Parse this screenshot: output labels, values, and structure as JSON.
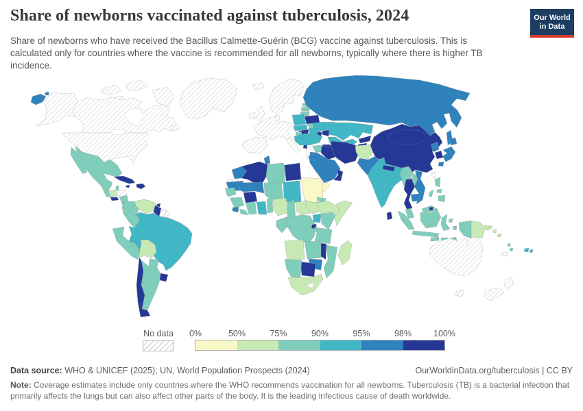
{
  "header": {
    "title": "Share of newborns vaccinated against tuberculosis, 2024",
    "subtitle": "Share of newborns who have received the Bacillus Calmette-Guérin (BCG) vaccine against tuberculosis. This is calculated only for countries where the vaccine is recommended for all newborns, typically where there is higher TB incidence.",
    "logo_line1": "Our World",
    "logo_line2": "in Data",
    "logo_bg": "#1d3d63",
    "logo_stripe": "#d73a2d"
  },
  "legend": {
    "no_data_label": "No data",
    "ticks": [
      "0%",
      "50%",
      "75%",
      "90%",
      "95%",
      "98%",
      "100%"
    ],
    "bins": [
      {
        "range": "0-50%",
        "color": "#f9f8c7"
      },
      {
        "range": "50-75%",
        "color": "#c7e9b4"
      },
      {
        "range": "75-90%",
        "color": "#7fcdbb"
      },
      {
        "range": "90-95%",
        "color": "#41b6c4"
      },
      {
        "range": "95-98%",
        "color": "#3082bd"
      },
      {
        "range": "98-100%",
        "color": "#253896"
      }
    ]
  },
  "footer": {
    "source_label": "Data source:",
    "source_text": " WHO & UNICEF (2025); UN, World Population Prospects (2024)",
    "link_text": "OurWorldinData.org/tuberculosis | CC BY",
    "note_label": "Note:",
    "note_text": " Coverage estimates include only countries where the WHO recommends vaccination for all newborns. Tuberculosis (TB) is a bacterial infection that primarily affects the lungs but can also affect other parts of the body. It is the leading infectious cause of death worldwide."
  },
  "chart_data": {
    "type": "choropleth",
    "geo": "world",
    "title": "Share of newborns vaccinated against tuberculosis, 2024",
    "year": "2024",
    "unit": "% of newborns receiving BCG vaccine",
    "bin_edges": [
      "0%",
      "50%",
      "75%",
      "90%",
      "95%",
      "98%",
      "100%"
    ],
    "bin_colors": [
      "#f9f8c7",
      "#c7e9b4",
      "#7fcdbb",
      "#41b6c4",
      "#3082bd",
      "#253896"
    ],
    "no_data_countries": [
      "Canada",
      "United States",
      "Greenland",
      "Iceland",
      "United Kingdom",
      "Ireland",
      "Norway",
      "Sweden",
      "Finland",
      "Denmark",
      "France",
      "Germany",
      "Belgium",
      "Netherlands",
      "Spain",
      "Portugal",
      "Italy",
      "Switzerland",
      "Austria",
      "Greece",
      "Honduras",
      "Suriname",
      "French Guiana",
      "Western Sahara",
      "Taiwan",
      "Australia",
      "New Zealand",
      "New Caledonia"
    ],
    "values_by_bin": {
      "0-50%": [
        "Sudan",
        "Yemen"
      ],
      "50-75%": [
        "Guatemala",
        "Venezuela",
        "Bolivia",
        "Afghanistan",
        "Nigeria",
        "Central African Republic",
        "South Sudan",
        "Ethiopia",
        "Somalia",
        "Angola",
        "South Africa",
        "Madagascar",
        "Papua New Guinea",
        "Solomon Islands"
      ],
      "75-90%": [
        "Mexico",
        "Belize",
        "Nicaragua",
        "Colombia",
        "Ecuador",
        "Peru",
        "Paraguay",
        "Argentina",
        "Estonia",
        "Latvia",
        "Lithuania",
        "Ukraine",
        "Croatia",
        "Bosnia and Herzegovina",
        "Syria",
        "Libya",
        "Niger",
        "Senegal",
        "Guinea",
        "Liberia",
        "Cote d'Ivoire",
        "Togo",
        "Benin",
        "Cameroon",
        "Gabon",
        "Congo",
        "Democratic Republic of Congo",
        "Eritrea",
        "Kenya",
        "Tanzania",
        "Zambia",
        "Namibia",
        "Mozambique",
        "Myanmar",
        "Laos",
        "Malaysia",
        "Indonesia",
        "Philippines",
        "Timor-Leste",
        "Vanuatu"
      ],
      "90-95%": [
        "Brazil",
        "India",
        "Kazakhstan",
        "Uzbekistan",
        "Turkey",
        "Poland",
        "Czechia",
        "Slovakia",
        "Romania",
        "Bulgaria",
        "Georgia",
        "Chad",
        "Ghana",
        "Uganda",
        "Fiji"
      ],
      "95-98%": [
        "Russia",
        "Japan",
        "North Korea",
        "Vietnam",
        "Cambodia",
        "Pakistan",
        "Bangladesh",
        "Saudi Arabia",
        "Jordan",
        "Morocco",
        "Tunisia",
        "Mauritania",
        "Mali",
        "Sierra Leone",
        "Zimbabwe"
      ],
      "98-100%": [
        "China",
        "Mongolia",
        "South Korea",
        "Thailand",
        "Sri Lanka",
        "Nepal",
        "Iran",
        "Iraq",
        "Oman",
        "Egypt",
        "Algeria",
        "Turkmenistan",
        "Kyrgyzstan",
        "Tajikistan",
        "Azerbaijan",
        "Armenia",
        "Belarus",
        "Hungary",
        "Serbia",
        "Albania",
        "Moldova",
        "Cuba",
        "Jamaica",
        "Haiti",
        "Dominican Republic",
        "Trinidad and Tobago",
        "El Salvador",
        "Costa Rica",
        "Panama",
        "Chile",
        "Uruguay",
        "Guyana",
        "Botswana",
        "Malawi",
        "Burkina Faso",
        "Burundi",
        "Rwanda",
        "Brunei"
      ]
    }
  },
  "map": {
    "country_bins": {
      "greenland": "nodata",
      "arctic1": "nodata",
      "arctic2": "nodata",
      "arctic3": "nodata",
      "baffin": "nodata",
      "alaska": "nodata",
      "canada": "nodata",
      "newfoundland": "nodata",
      "usa": "nodata",
      "chukotka-w": "b4",
      "chukotka-dot": "b4",
      "mexico": "b2",
      "baja": "b2",
      "guatemala": "b1",
      "belize": "b2",
      "honduras": "nodata",
      "elsalvador": "b5",
      "nicaragua": "b2",
      "costarica": "b5",
      "panama": "b5",
      "cuba": "b5",
      "jamaica": "b5",
      "hispaniola": "b5",
      "trinidad": "b5",
      "venezuela": "b1",
      "colombia": "b2",
      "guyana": "b5",
      "suriname": "nodata",
      "frguiana": "nodata",
      "ecuador": "b2",
      "peru": "b2",
      "brazil": "b3",
      "bolivia": "b1",
      "paraguay": "b2",
      "uruguay": "b5",
      "argentina": "b2",
      "chile": "b5",
      "iceland": "nodata",
      "uk": "nodata",
      "ireland": "nodata",
      "scandinavia": "nodata",
      "denmark": "nodata",
      "weurope": "nodata",
      "italy": "nodata",
      "iberia": "nodata",
      "greece": "nodata",
      "estonia": "b2",
      "latvia": "b2",
      "lithuania": "b2",
      "belarus": "b5",
      "poland": "b3",
      "czechoslovakia": "b3",
      "hungary": "b5",
      "croatia": "b2",
      "serbia": "b5",
      "albania": "b5",
      "romania": "b3",
      "moldova": "b5",
      "bulgaria": "b3",
      "ukraine": "b2",
      "russia": "b4",
      "sakhalin": "b4",
      "kazakhstan": "b3",
      "uzbekistan": "b3",
      "turkmenistan": "b5",
      "kyrgyzstan": "b5",
      "tajikistan": "b5",
      "georgia": "b3",
      "azerbaijan": "b5",
      "armenia": "b5",
      "turkey": "b3",
      "syria": "b2",
      "jordan": "b4",
      "iraq": "b5",
      "iran": "b5",
      "afghanistan": "b1",
      "pakistan": "b4",
      "india": "b3",
      "nepal": "b5",
      "bangladesh": "b4",
      "srilanka": "b5",
      "saudi": "b4",
      "yemen": "b0",
      "oman": "b5",
      "morocco": "b4",
      "wsahara": "nodata",
      "algeria": "b5",
      "tunisia": "b4",
      "libya": "b2",
      "egypt": "b5",
      "mauritania": "b4",
      "mali": "b4",
      "niger": "b2",
      "chad": "b3",
      "sudan": "b0",
      "eritrea": "b2",
      "senegal": "b2",
      "guinea": "b2",
      "sierraleone": "b4",
      "liberia": "b2",
      "ivorycoast": "b2",
      "burkina": "b5",
      "ghana": "b3",
      "togobenin": "b2",
      "nigeria": "b1",
      "cameroon": "b2",
      "car": "b1",
      "southsudan": "b1",
      "ethiopia": "b1",
      "somalia": "b1",
      "uganda": "b3",
      "kenya": "b2",
      "drc": "b2",
      "congogabon": "b2",
      "rwandaburundi": "b5",
      "tanzania": "b2",
      "angola": "b1",
      "zambia": "b2",
      "malawi": "b5",
      "mozambique": "b2",
      "zimbabwe": "b4",
      "botswana": "b5",
      "namibia": "b2",
      "southafrica": "b1",
      "madagascar": "b1",
      "china": "b5",
      "mongolia": "b5",
      "northkorea": "b4",
      "southkorea": "b5",
      "hokkaido": "b4",
      "honshu": "b4",
      "kyushu": "b4",
      "taiwan": "nodata",
      "myanmar": "b2",
      "thailand": "b5",
      "laos": "b2",
      "vietnam": "b4",
      "cambodia": "b4",
      "malaysia-pen": "b2",
      "malaysia-borneo": "b2",
      "brunei": "b5",
      "sumatra": "b2",
      "java": "b2",
      "borneo-indo": "b2",
      "sulawesi": "b2",
      "lsunda1": "b2",
      "lsunda2": "b2",
      "timor": "b2",
      "molucca1": "b2",
      "molucca2": "b2",
      "westpapua": "b2",
      "png": "b1",
      "newbritain": "b1",
      "luzon": "b2",
      "visayas": "b2",
      "mindanao": "b2",
      "palawan": "b2",
      "solomon1": "b1",
      "solomon2": "b1",
      "solomon3": "b1",
      "vanuatu1": "b2",
      "vanuatu2": "b2",
      "fiji1": "b3",
      "fiji2": "b3",
      "newcaledonia": "nodata",
      "australia": "nodata",
      "tasmania": "nodata",
      "nz-north": "nodata",
      "nz-south": "nodata"
    }
  }
}
